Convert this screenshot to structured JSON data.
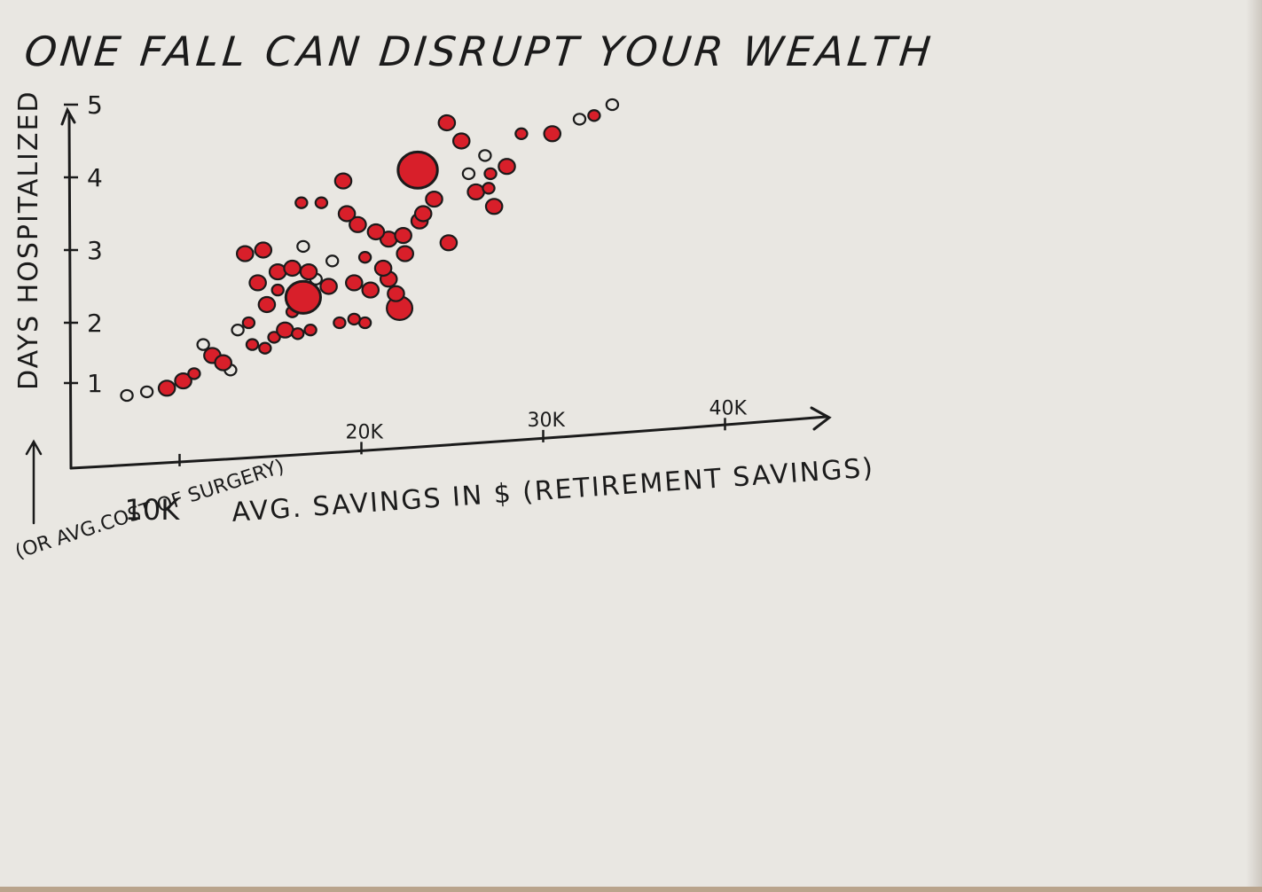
{
  "chart_data": {
    "type": "scatter",
    "title": "ONE FALL CAN DISRUPT YOUR WEALTH",
    "xlabel": "AVG. SAVINGS IN $ (RETIREMENT SAVINGS)",
    "ylabel": "DAYS HOSPITALIZED",
    "ylabel_alt": "(OR AVG.COST OF SURGERY)",
    "x_ticks": [
      "10K",
      "20K",
      "30K",
      "40K"
    ],
    "y_ticks": [
      "1",
      "2",
      "3",
      "4",
      "5"
    ],
    "xlim": [
      5000,
      45000
    ],
    "ylim": [
      0,
      5.2
    ],
    "colors": {
      "ink": "#1b1b1b",
      "marker": "#d81f2a",
      "paper": "#e9e7e2"
    },
    "points": [
      {
        "x": 7100,
        "y": 1.0,
        "s": 1,
        "fill": false
      },
      {
        "x": 8200,
        "y": 1.05,
        "s": 1,
        "fill": false
      },
      {
        "x": 9300,
        "y": 1.1,
        "s": 2,
        "fill": true
      },
      {
        "x": 10200,
        "y": 1.2,
        "s": 2,
        "fill": true
      },
      {
        "x": 10800,
        "y": 1.3,
        "s": 1,
        "fill": true
      },
      {
        "x": 11800,
        "y": 1.55,
        "s": 2,
        "fill": true
      },
      {
        "x": 12800,
        "y": 1.35,
        "s": 1,
        "fill": false
      },
      {
        "x": 11300,
        "y": 1.7,
        "s": 1,
        "fill": false
      },
      {
        "x": 13200,
        "y": 1.9,
        "s": 1,
        "fill": false
      },
      {
        "x": 12400,
        "y": 1.45,
        "s": 2,
        "fill": true
      },
      {
        "x": 14000,
        "y": 1.7,
        "s": 1,
        "fill": true
      },
      {
        "x": 14700,
        "y": 1.65,
        "s": 1,
        "fill": true
      },
      {
        "x": 15200,
        "y": 1.8,
        "s": 1,
        "fill": true
      },
      {
        "x": 15800,
        "y": 1.9,
        "s": 2,
        "fill": true
      },
      {
        "x": 16500,
        "y": 1.85,
        "s": 1,
        "fill": true
      },
      {
        "x": 17200,
        "y": 1.9,
        "s": 1,
        "fill": true
      },
      {
        "x": 16200,
        "y": 2.15,
        "s": 1,
        "fill": true
      },
      {
        "x": 13800,
        "y": 2.0,
        "s": 1,
        "fill": true
      },
      {
        "x": 14800,
        "y": 2.25,
        "s": 2,
        "fill": true
      },
      {
        "x": 15400,
        "y": 2.45,
        "s": 1,
        "fill": true
      },
      {
        "x": 16800,
        "y": 2.35,
        "s": 6,
        "fill": true
      },
      {
        "x": 18200,
        "y": 2.5,
        "s": 2,
        "fill": true
      },
      {
        "x": 17500,
        "y": 2.6,
        "s": 1,
        "fill": false
      },
      {
        "x": 14300,
        "y": 2.55,
        "s": 2,
        "fill": true
      },
      {
        "x": 15400,
        "y": 2.7,
        "s": 2,
        "fill": true
      },
      {
        "x": 16200,
        "y": 2.75,
        "s": 2,
        "fill": true
      },
      {
        "x": 17100,
        "y": 2.7,
        "s": 2,
        "fill": true
      },
      {
        "x": 18400,
        "y": 2.85,
        "s": 1,
        "fill": false
      },
      {
        "x": 13600,
        "y": 2.95,
        "s": 2,
        "fill": true
      },
      {
        "x": 14600,
        "y": 3.0,
        "s": 2,
        "fill": true
      },
      {
        "x": 16800,
        "y": 3.05,
        "s": 1,
        "fill": false
      },
      {
        "x": 19600,
        "y": 2.55,
        "s": 2,
        "fill": true
      },
      {
        "x": 20500,
        "y": 2.45,
        "s": 2,
        "fill": true
      },
      {
        "x": 21500,
        "y": 2.6,
        "s": 2,
        "fill": true
      },
      {
        "x": 21200,
        "y": 2.75,
        "s": 2,
        "fill": true
      },
      {
        "x": 22400,
        "y": 2.95,
        "s": 2,
        "fill": true
      },
      {
        "x": 20200,
        "y": 2.9,
        "s": 1,
        "fill": true
      },
      {
        "x": 21500,
        "y": 3.15,
        "s": 2,
        "fill": true
      },
      {
        "x": 22300,
        "y": 3.2,
        "s": 2,
        "fill": true
      },
      {
        "x": 20800,
        "y": 3.25,
        "s": 2,
        "fill": true
      },
      {
        "x": 19800,
        "y": 3.35,
        "s": 2,
        "fill": true
      },
      {
        "x": 19200,
        "y": 3.5,
        "s": 2,
        "fill": true
      },
      {
        "x": 23200,
        "y": 3.4,
        "s": 2,
        "fill": true
      },
      {
        "x": 24800,
        "y": 3.1,
        "s": 2,
        "fill": true
      },
      {
        "x": 22100,
        "y": 2.2,
        "s": 4,
        "fill": true
      },
      {
        "x": 21900,
        "y": 2.4,
        "s": 2,
        "fill": true
      },
      {
        "x": 20200,
        "y": 2.0,
        "s": 1,
        "fill": true
      },
      {
        "x": 19600,
        "y": 2.05,
        "s": 1,
        "fill": true
      },
      {
        "x": 18800,
        "y": 2.0,
        "s": 1,
        "fill": true
      },
      {
        "x": 16700,
        "y": 3.65,
        "s": 1,
        "fill": true
      },
      {
        "x": 17800,
        "y": 3.65,
        "s": 1,
        "fill": true
      },
      {
        "x": 19000,
        "y": 3.95,
        "s": 2,
        "fill": true
      },
      {
        "x": 23100,
        "y": 4.1,
        "s": 7,
        "fill": true
      },
      {
        "x": 23400,
        "y": 3.5,
        "s": 2,
        "fill": true
      },
      {
        "x": 24000,
        "y": 3.7,
        "s": 2,
        "fill": true
      },
      {
        "x": 25500,
        "y": 4.5,
        "s": 2,
        "fill": true
      },
      {
        "x": 25900,
        "y": 4.05,
        "s": 1,
        "fill": false
      },
      {
        "x": 26300,
        "y": 3.8,
        "s": 2,
        "fill": true
      },
      {
        "x": 27000,
        "y": 3.85,
        "s": 1,
        "fill": true
      },
      {
        "x": 27300,
        "y": 3.6,
        "s": 2,
        "fill": true
      },
      {
        "x": 27100,
        "y": 4.05,
        "s": 1,
        "fill": true
      },
      {
        "x": 28000,
        "y": 4.15,
        "s": 2,
        "fill": true
      },
      {
        "x": 26800,
        "y": 4.3,
        "s": 1,
        "fill": false
      },
      {
        "x": 28800,
        "y": 4.6,
        "s": 1,
        "fill": true
      },
      {
        "x": 30500,
        "y": 4.6,
        "s": 2,
        "fill": true
      },
      {
        "x": 32000,
        "y": 4.8,
        "s": 1,
        "fill": false
      },
      {
        "x": 32800,
        "y": 4.85,
        "s": 1,
        "fill": true
      },
      {
        "x": 33800,
        "y": 5.0,
        "s": 1,
        "fill": false
      },
      {
        "x": 24700,
        "y": 4.75,
        "s": 2,
        "fill": true
      }
    ]
  },
  "handwriting": {
    "axis_ticks_overlay": "20K",
    "origin_scribble": "1"
  }
}
